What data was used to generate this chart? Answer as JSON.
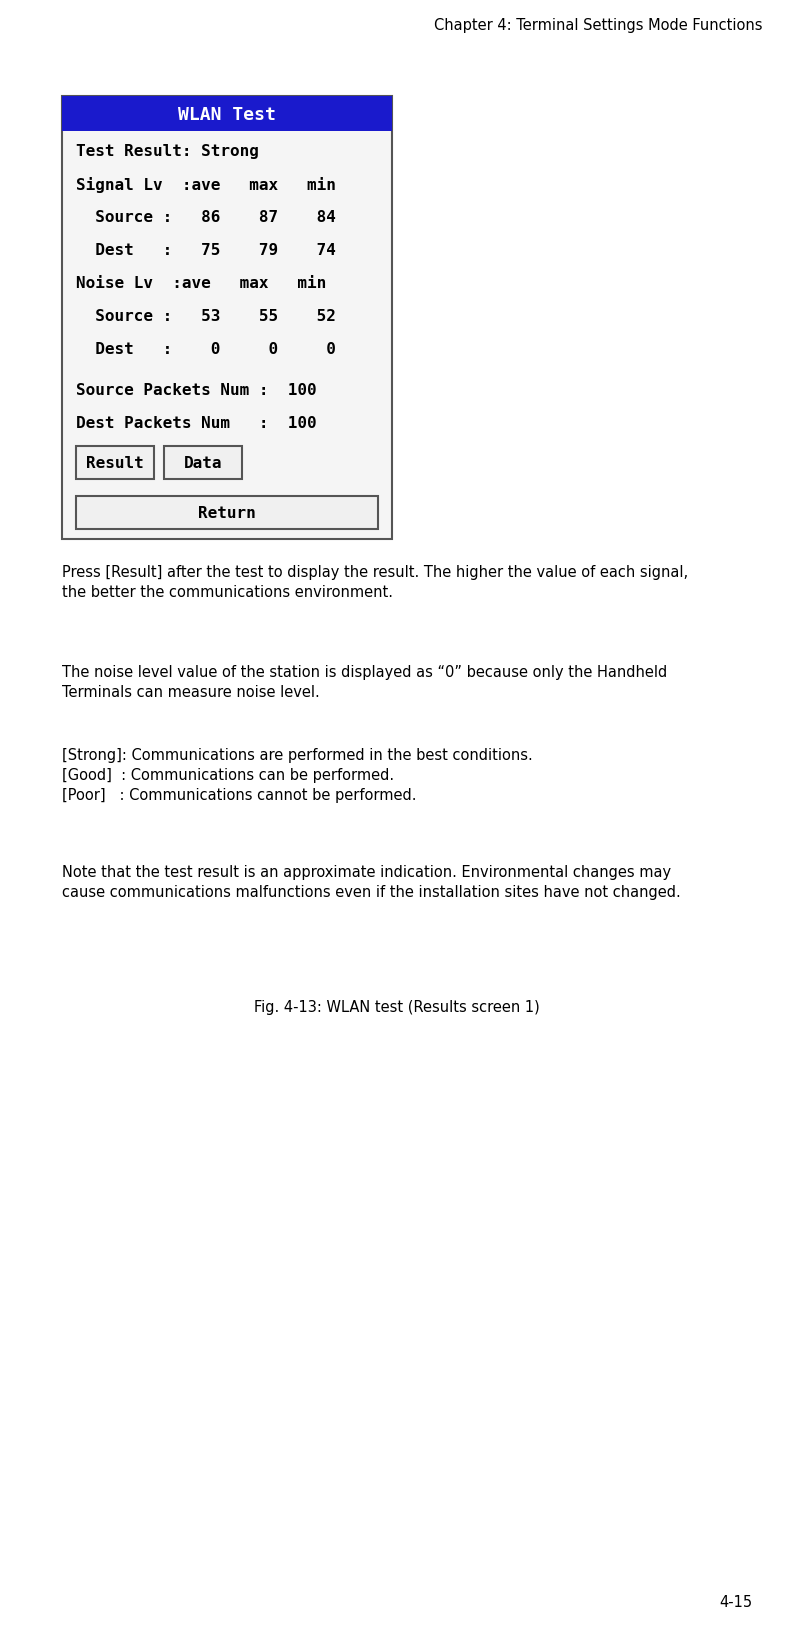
{
  "header_text": "Chapter 4: Terminal Settings Mode Functions",
  "header_fontsize": 10.5,
  "bg_color": "#ffffff",
  "screen_title": "WLAN Test",
  "screen_title_bg": "#1a1acc",
  "screen_title_fg": "#ffffff",
  "screen_title_fontsize": 13,
  "screen_border": "#555555",
  "screen_content_bg": "#f2f2f2",
  "screen_lines": [
    "Test Result: Strong",
    "Signal Lv  :ave   max   min",
    "  Source :   86    87    84",
    "  Dest   :   75    79    74",
    "Noise Lv  :ave   max   min",
    "  Source :   53    55    52",
    "  Dest   :    0     0     0",
    "Source Packets Num :  100",
    "Dest Packets Num   :  100"
  ],
  "button1": "Result",
  "button2": "Data",
  "button3": "Return",
  "para1": "Press [Result] after the test to display the result. The higher the value of each signal,\nthe better the communications environment.",
  "para2": "The noise level value of the station is displayed as “0” because only the Handheld\nTerminals can measure noise level.",
  "para3_line1": "[Strong]: Communications are performed in the best conditions.",
  "para3_line2": "[Good]  : Communications can be performed.",
  "para3_line3": "[Poor]   : Communications cannot be performed.",
  "para4": "Note that the test result is an approximate indication. Environmental changes may\ncause communications malfunctions even if the installation sites have not changed.",
  "caption": "Fig. 4-13: WLAN test (Results screen 1)",
  "footer": "4-15",
  "body_fontsize": 10.5,
  "caption_fontsize": 10.5,
  "footer_fontsize": 10.5,
  "mono_fontsize": 11.5
}
